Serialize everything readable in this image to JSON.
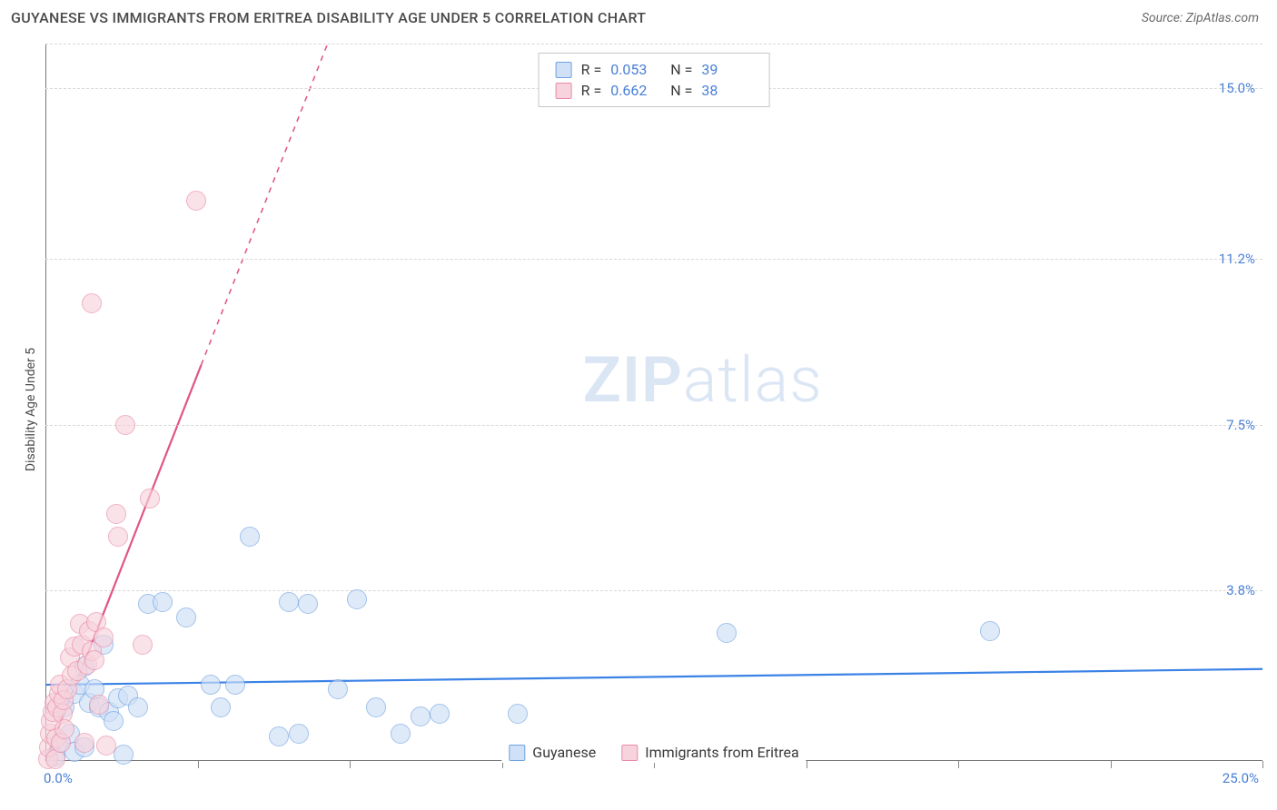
{
  "title": "GUYANESE VS IMMIGRANTS FROM ERITREA DISABILITY AGE UNDER 5 CORRELATION CHART",
  "source": "Source: ZipAtlas.com",
  "y_axis_label": "Disability Age Under 5",
  "watermark_zip": "ZIP",
  "watermark_rest": "atlas",
  "chart": {
    "type": "scatter",
    "background_color": "#ffffff",
    "grid_color": "#d8d8d8",
    "axis_color": "#777777",
    "xlim": [
      0,
      25
    ],
    "ylim": [
      0,
      16
    ],
    "x_corner_min": "0.0%",
    "x_corner_max": "25.0%",
    "y_ticks": [
      {
        "v": 3.8,
        "label": "3.8%"
      },
      {
        "v": 7.5,
        "label": "7.5%"
      },
      {
        "v": 11.2,
        "label": "11.2%"
      },
      {
        "v": 15.0,
        "label": "15.0%"
      }
    ],
    "x_tick_positions": [
      3.125,
      6.25,
      9.375,
      12.5,
      15.625,
      18.75,
      21.875,
      25
    ],
    "point_radius": 11,
    "series": [
      {
        "name": "Guyanese",
        "fill": "#cfe0f7",
        "stroke": "#6fa2e0",
        "fill_opacity": 0.65,
        "stroke_width": 1.3,
        "trend": {
          "color": "#3b82e6",
          "width": 2.2,
          "y_at_x0": 1.7,
          "y_at_xmax": 2.05,
          "dashed_after_x": 25
        },
        "r_value": "0.053",
        "n_value": "39",
        "points": [
          [
            0.2,
            0.1
          ],
          [
            0.3,
            0.4
          ],
          [
            0.4,
            1.2
          ],
          [
            0.5,
            0.6
          ],
          [
            0.6,
            1.5
          ],
          [
            0.6,
            0.2
          ],
          [
            0.7,
            1.7
          ],
          [
            0.8,
            2.1
          ],
          [
            0.8,
            0.3
          ],
          [
            0.9,
            1.3
          ],
          [
            1.0,
            1.6
          ],
          [
            1.1,
            1.2
          ],
          [
            1.2,
            2.6
          ],
          [
            1.3,
            1.1
          ],
          [
            1.4,
            0.9
          ],
          [
            1.5,
            1.4
          ],
          [
            1.6,
            0.15
          ],
          [
            1.7,
            1.45
          ],
          [
            1.9,
            1.2
          ],
          [
            2.1,
            3.5
          ],
          [
            2.4,
            3.55
          ],
          [
            2.9,
            3.2
          ],
          [
            3.4,
            1.7
          ],
          [
            3.9,
            1.7
          ],
          [
            3.6,
            1.2
          ],
          [
            4.2,
            5.0
          ],
          [
            4.8,
            0.55
          ],
          [
            5.0,
            3.55
          ],
          [
            5.2,
            0.6
          ],
          [
            5.4,
            3.5
          ],
          [
            6.0,
            1.6
          ],
          [
            6.4,
            3.6
          ],
          [
            6.8,
            1.2
          ],
          [
            7.3,
            0.6
          ],
          [
            7.7,
            1.0
          ],
          [
            8.1,
            1.05
          ],
          [
            9.7,
            1.05
          ],
          [
            14.0,
            2.85
          ],
          [
            19.4,
            2.9
          ]
        ]
      },
      {
        "name": "Immigrants from Eritrea",
        "fill": "#f7d3dd",
        "stroke": "#e98aa6",
        "fill_opacity": 0.65,
        "stroke_width": 1.3,
        "trend": {
          "color": "#e15583",
          "width": 2.2,
          "y_at_x0": 0.0,
          "y_at_xmax": 69.0,
          "dashed_after_x": 3.2
        },
        "r_value": "0.662",
        "n_value": "38",
        "points": [
          [
            0.05,
            0.05
          ],
          [
            0.08,
            0.3
          ],
          [
            0.1,
            0.6
          ],
          [
            0.12,
            0.9
          ],
          [
            0.15,
            1.1
          ],
          [
            0.18,
            1.3
          ],
          [
            0.2,
            0.05
          ],
          [
            0.22,
            0.5
          ],
          [
            0.25,
            1.2
          ],
          [
            0.28,
            1.5
          ],
          [
            0.3,
            1.7
          ],
          [
            0.32,
            0.4
          ],
          [
            0.35,
            1.05
          ],
          [
            0.38,
            1.35
          ],
          [
            0.4,
            0.7
          ],
          [
            0.45,
            1.6
          ],
          [
            0.5,
            2.3
          ],
          [
            0.55,
            1.9
          ],
          [
            0.6,
            2.55
          ],
          [
            0.65,
            2.0
          ],
          [
            0.7,
            3.05
          ],
          [
            0.75,
            2.6
          ],
          [
            0.8,
            0.4
          ],
          [
            0.85,
            2.15
          ],
          [
            0.9,
            2.9
          ],
          [
            0.95,
            2.45
          ],
          [
            1.0,
            2.25
          ],
          [
            1.05,
            3.1
          ],
          [
            1.1,
            1.25
          ],
          [
            1.2,
            2.75
          ],
          [
            1.25,
            0.35
          ],
          [
            1.45,
            5.5
          ],
          [
            1.5,
            5.0
          ],
          [
            1.65,
            7.5
          ],
          [
            2.0,
            2.6
          ],
          [
            2.15,
            5.85
          ],
          [
            0.95,
            10.2
          ],
          [
            3.1,
            12.5
          ]
        ]
      }
    ]
  },
  "legend_label_r": "R =",
  "legend_label_n": "N ="
}
